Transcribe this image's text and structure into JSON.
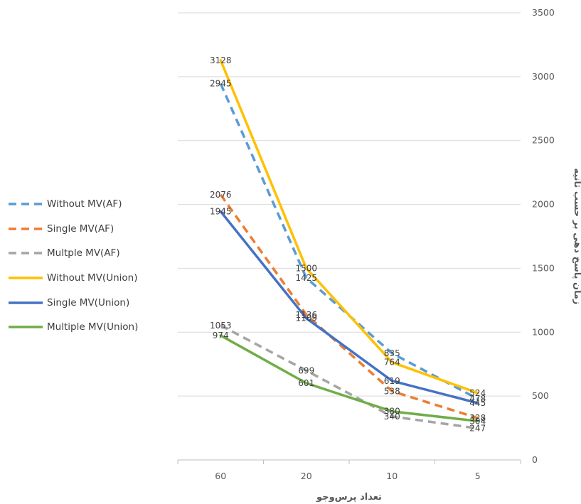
{
  "chart_data": {
    "type": "line",
    "categories": [
      "60",
      "20",
      "10",
      "5"
    ],
    "xlabel": "تعداد پرس‌وجو",
    "ylabel": "زمان پاسخ دهی بر حسب ثانیه",
    "ylim": [
      0,
      3500
    ],
    "yticks": [
      0,
      500,
      1000,
      1500,
      2000,
      2500,
      3000,
      3500
    ],
    "grid": "horizontal",
    "legend_position": "left",
    "series": [
      {
        "name": "Without MV(AF)",
        "values": [
          2945,
          1425,
          835,
          478
        ],
        "color": "#5B9BD5",
        "dash": true
      },
      {
        "name": "Single MV(AF)",
        "values": [
          2076,
          1136,
          538,
          328
        ],
        "color": "#ED7D31",
        "dash": true
      },
      {
        "name": "Multple MV(AF)",
        "values": [
          1053,
          699,
          340,
          247
        ],
        "color": "#A5A5A5",
        "dash": true
      },
      {
        "name": "Without MV(Union)",
        "values": [
          3128,
          1500,
          764,
          524
        ],
        "color": "#FFC000",
        "dash": false
      },
      {
        "name": "Single MV(Union)",
        "values": [
          1945,
          1109,
          619,
          445
        ],
        "color": "#4472C4",
        "dash": false
      },
      {
        "name": "Multiple MV(Union)",
        "values": [
          974,
          601,
          380,
          304
        ],
        "color": "#70AD47",
        "dash": false
      }
    ]
  }
}
